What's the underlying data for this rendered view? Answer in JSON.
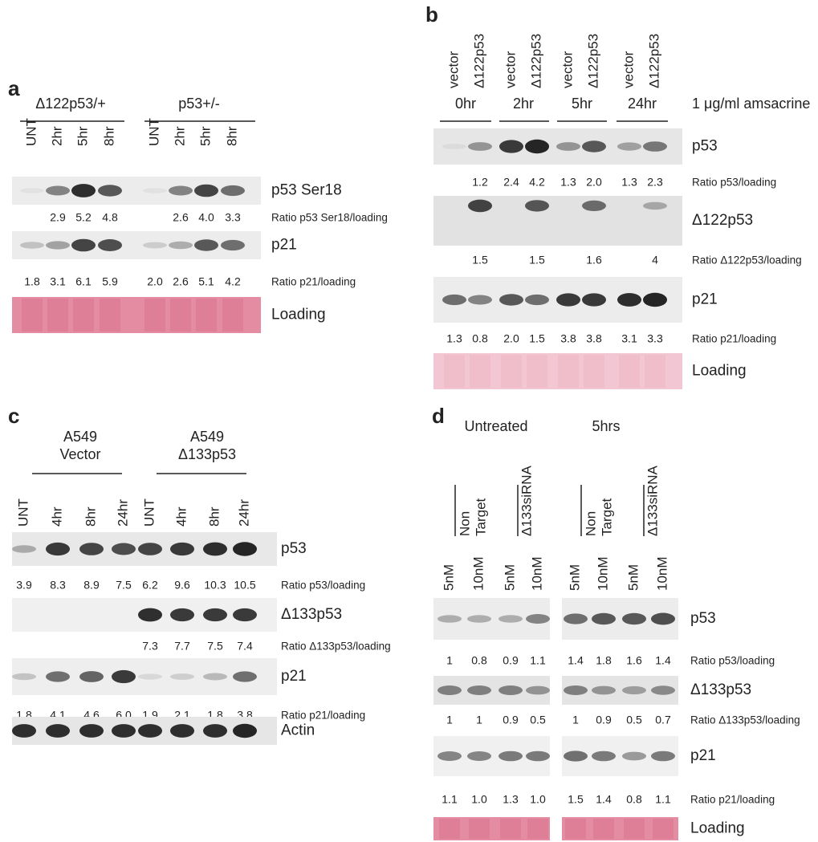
{
  "panels": [
    {
      "letter": "a",
      "groups": [
        [
          "Δ122p53/+"
        ],
        [
          "p53+/-"
        ]
      ],
      "lanes": [
        "UNT",
        "2hr",
        "5hr",
        "8hr",
        "UNT",
        "2hr",
        "5hr",
        "8hr"
      ],
      "rows": [
        {
          "label": "p53 Ser18",
          "ratio_label": "Ratio p53 Ser18/loading",
          "ratios": [
            null,
            "2.9",
            "5.2",
            "4.8",
            null,
            "2.6",
            "4.0",
            "3.3"
          ]
        },
        {
          "label": "p21",
          "ratio_label": "Ratio p21/loading",
          "ratios": [
            "1.8",
            "3.1",
            "6.1",
            "5.9",
            "2.0",
            "2.6",
            "5.1",
            "4.2"
          ]
        },
        {
          "label": "Loading"
        }
      ]
    },
    {
      "letter": "b",
      "lanes": [
        "vector",
        "Δ122p53",
        "vector",
        "Δ122p53",
        "vector",
        "Δ122p53",
        "vector",
        "Δ122p53"
      ],
      "groups": [
        [
          "0hr"
        ],
        [
          "2hr"
        ],
        [
          "5hr"
        ],
        [
          "24hr"
        ]
      ],
      "treatment": "1 μg/ml amsacrine",
      "rows": [
        {
          "label": "p53",
          "ratio_label": "Ratio p53/loading",
          "ratios": [
            null,
            "1.2",
            "2.4",
            "4.2",
            "1.3",
            "2.0",
            "1.3",
            "2.3"
          ]
        },
        {
          "label": "Δ122p53",
          "ratio_label": "Ratio Δ122p53/loading",
          "ratios": [
            null,
            "1.5",
            null,
            "1.5",
            null,
            "1.6",
            null,
            "4"
          ]
        },
        {
          "label": "p21",
          "ratio_label": "Ratio p21/loading",
          "ratios": [
            "1.3",
            "0.8",
            "2.0",
            "1.5",
            "3.8",
            "3.8",
            "3.1",
            "3.3"
          ]
        },
        {
          "label": "Loading"
        }
      ]
    },
    {
      "letter": "c",
      "groups": [
        [
          "A549",
          "Vector"
        ],
        [
          "A549",
          "Δ133p53"
        ]
      ],
      "lanes": [
        "UNT",
        "4hr",
        "8hr",
        "24hr",
        "UNT",
        "4hr",
        "8hr",
        "24hr"
      ],
      "rows": [
        {
          "label": "p53",
          "ratio_label": "Ratio p53/loading",
          "ratios": [
            "3.9",
            "8.3",
            "8.9",
            "7.5",
            "6.2",
            "9.6",
            "10.3",
            "10.5"
          ]
        },
        {
          "label": "Δ133p53",
          "ratio_label": "Ratio Δ133p53/loading",
          "ratios": [
            null,
            null,
            null,
            null,
            "7.3",
            "7.7",
            "7.5",
            "7.4"
          ]
        },
        {
          "label": "p21",
          "ratio_label": "Ratio p21/loading",
          "ratios": [
            "1.8",
            "4.1",
            "4.6",
            "6.0",
            "1.9",
            "2.1",
            "1.8",
            "3.8"
          ]
        },
        {
          "label": "Actin"
        }
      ]
    },
    {
      "letter": "d",
      "groups": [
        [
          "Untreated"
        ],
        [
          "5hrs"
        ]
      ],
      "sirna_groups": [
        [
          "Non",
          "Target"
        ],
        [
          "Δ133siRNA"
        ],
        [
          "Non",
          "Target"
        ],
        [
          "Δ133siRNA"
        ]
      ],
      "lanes": [
        "5nM",
        "10nM",
        "5nM",
        "10nM",
        "5nM",
        "10nM",
        "5nM",
        "10nM"
      ],
      "rows": [
        {
          "label": "p53",
          "ratio_label": "Ratio p53/loading",
          "ratios": [
            "1",
            "0.8",
            "0.9",
            "1.1",
            "1.4",
            "1.8",
            "1.6",
            "1.4"
          ]
        },
        {
          "label": "Δ133p53",
          "ratio_label": "Ratio Δ133p53/loading",
          "ratios": [
            "1",
            "1",
            "0.9",
            "0.5",
            "1",
            "0.9",
            "0.5",
            "0.7"
          ]
        },
        {
          "label": "p21",
          "ratio_label": "Ratio p21/loading",
          "ratios": [
            "1.1",
            "1.0",
            "1.3",
            "1.0",
            "1.5",
            "1.4",
            "0.8",
            "1.1"
          ]
        },
        {
          "label": "Loading"
        }
      ]
    }
  ]
}
